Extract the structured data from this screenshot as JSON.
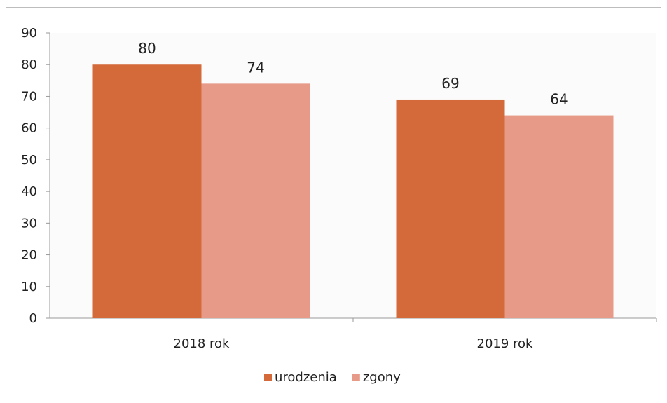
{
  "chart_data": {
    "type": "bar",
    "categories": [
      "2018 rok",
      "2019 rok"
    ],
    "series": [
      {
        "name": "urodzenia",
        "values": [
          80,
          69
        ],
        "color": "#d4693a"
      },
      {
        "name": "zgony",
        "values": [
          74,
          64
        ],
        "color": "#e89a88"
      }
    ],
    "ylim": [
      0,
      90
    ],
    "yticks": [
      0,
      10,
      20,
      30,
      40,
      50,
      60,
      70,
      80,
      90
    ],
    "data_labels": true,
    "grid": false,
    "legend_position": "bottom"
  }
}
